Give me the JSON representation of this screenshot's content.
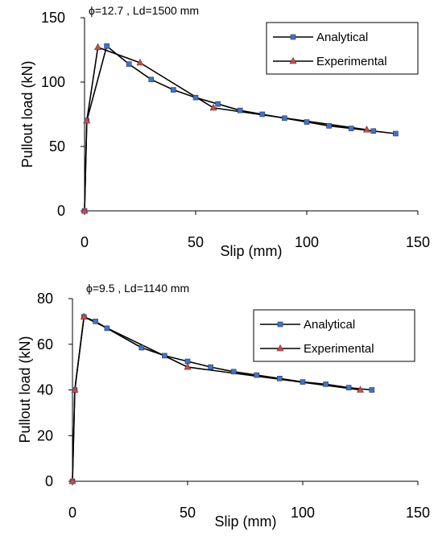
{
  "chart_data": [
    {
      "type": "line",
      "annotation": "ϕ=12.7 , Ld=1500 mm",
      "xlabel": "Slip (mm)",
      "ylabel": "Pullout load (kN)",
      "xlim": [
        0,
        150
      ],
      "ylim": [
        0,
        150
      ],
      "xticks": [
        "0",
        "50",
        "100",
        "150"
      ],
      "yticks": [
        "0",
        "50",
        "100",
        "150"
      ],
      "legend_position": "top-right",
      "series": [
        {
          "name": "Analytical",
          "marker": "square",
          "color": "#4472C4",
          "x": [
            0,
            1,
            10,
            20,
            30,
            40,
            50,
            60,
            70,
            80,
            90,
            100,
            110,
            120,
            130,
            140
          ],
          "y": [
            0,
            70,
            128,
            114,
            102,
            94,
            88,
            83,
            78,
            75,
            72,
            69,
            66,
            64,
            62,
            60
          ]
        },
        {
          "name": "Experimental",
          "marker": "triangle",
          "color": "#C0504D",
          "x": [
            0,
            1,
            6,
            25,
            58,
            127
          ],
          "y": [
            0,
            70,
            127,
            115,
            80,
            63
          ]
        }
      ]
    },
    {
      "type": "line",
      "annotation": "ϕ=9.5 , Ld=1140 mm",
      "xlabel": "Slip (mm)",
      "ylabel": "Pullout load (kN)",
      "xlim": [
        0,
        150
      ],
      "ylim": [
        0,
        80
      ],
      "xticks": [
        "0",
        "50",
        "100",
        "150"
      ],
      "yticks": [
        "0",
        "20",
        "40",
        "60",
        "80"
      ],
      "legend_position": "top-right",
      "series": [
        {
          "name": "Analytical",
          "marker": "square",
          "color": "#4472C4",
          "x": [
            0,
            1,
            5,
            10,
            15,
            30,
            40,
            50,
            60,
            70,
            80,
            90,
            100,
            110,
            120,
            130
          ],
          "y": [
            0,
            40,
            72,
            70,
            67,
            58.5,
            55,
            52.5,
            50,
            48,
            46.5,
            45,
            43.5,
            42.5,
            41,
            40
          ]
        },
        {
          "name": "Experimental",
          "marker": "triangle",
          "color": "#C0504D",
          "x": [
            0,
            1,
            5,
            50,
            125
          ],
          "y": [
            0,
            40,
            72,
            50,
            40
          ]
        }
      ]
    }
  ]
}
